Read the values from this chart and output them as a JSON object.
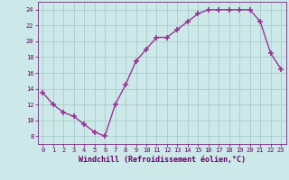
{
  "x": [
    0,
    1,
    2,
    3,
    4,
    5,
    6,
    7,
    8,
    9,
    10,
    11,
    12,
    13,
    14,
    15,
    16,
    17,
    18,
    19,
    20,
    21,
    22,
    23
  ],
  "y": [
    13.5,
    12.0,
    11.0,
    10.5,
    9.5,
    8.5,
    8.0,
    12.0,
    14.5,
    17.5,
    19.0,
    20.5,
    20.5,
    21.5,
    22.5,
    23.5,
    24.0,
    24.0,
    24.0,
    24.0,
    24.0,
    22.5,
    18.5,
    16.5
  ],
  "line_color": "#993399",
  "marker": "+",
  "marker_size": 4,
  "marker_lw": 1.2,
  "background_color": "#cce8e8",
  "grid_color": "#aacccc",
  "xlabel": "Windchill (Refroidissement éolien,°C)",
  "xlabel_color": "#660066",
  "tick_color": "#660066",
  "ylim": [
    7,
    25
  ],
  "xlim": [
    -0.5,
    23.5
  ],
  "yticks": [
    8,
    10,
    12,
    14,
    16,
    18,
    20,
    22,
    24
  ],
  "xticks": [
    0,
    1,
    2,
    3,
    4,
    5,
    6,
    7,
    8,
    9,
    10,
    11,
    12,
    13,
    14,
    15,
    16,
    17,
    18,
    19,
    20,
    21,
    22,
    23
  ],
  "xtick_labels": [
    "0",
    "1",
    "2",
    "3",
    "4",
    "5",
    "6",
    "7",
    "8",
    "9",
    "10",
    "11",
    "12",
    "13",
    "14",
    "15",
    "16",
    "17",
    "18",
    "19",
    "20",
    "21",
    "22",
    "23"
  ],
  "ytick_labels": [
    "8",
    "10",
    "12",
    "14",
    "16",
    "18",
    "20",
    "22",
    "24"
  ],
  "label_fontsize": 6,
  "tick_fontsize": 5,
  "line_width": 1.0
}
